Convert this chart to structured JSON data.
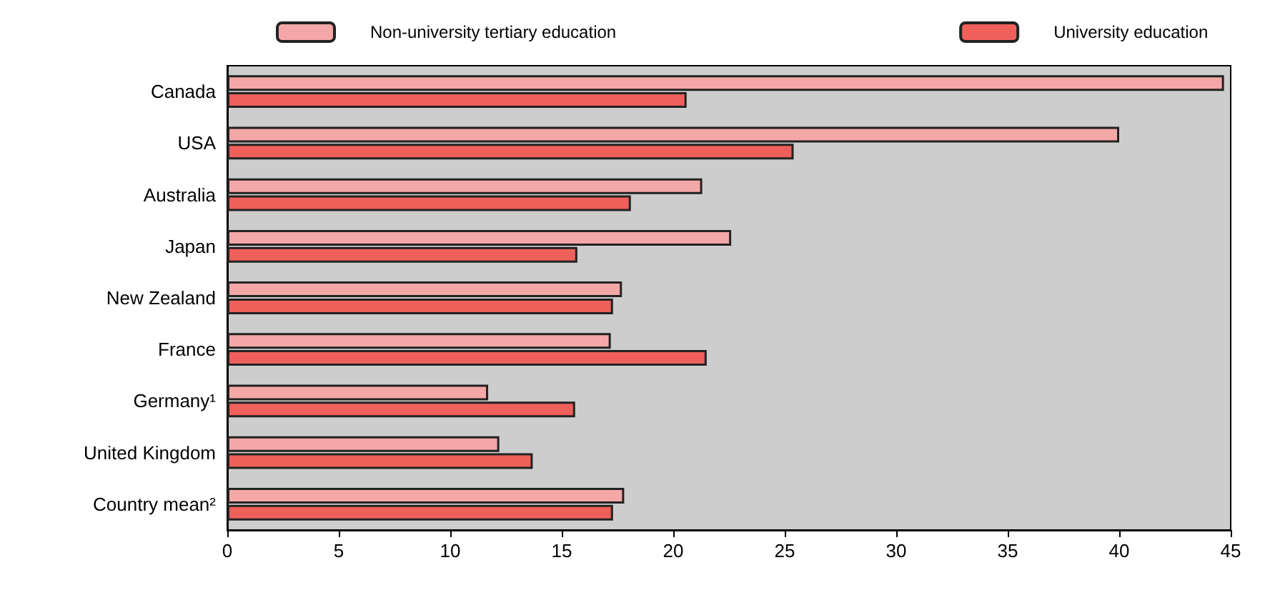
{
  "chart_data": {
    "type": "bar",
    "orientation": "horizontal",
    "categories": [
      "Canada",
      "USA",
      "Australia",
      "Japan",
      "New Zealand",
      "France",
      "Germany¹",
      "United Kingdom",
      "Country mean²"
    ],
    "series": [
      {
        "name": "Non-university tertiary education",
        "color": "#f4a7a7",
        "values": [
          44.7,
          40.0,
          21.3,
          22.6,
          17.7,
          17.2,
          11.7,
          12.2,
          17.8
        ]
      },
      {
        "name": "University education",
        "color": "#f0605a",
        "values": [
          20.6,
          25.4,
          18.1,
          15.7,
          17.3,
          21.5,
          15.6,
          13.7,
          17.3
        ]
      }
    ],
    "xlim": [
      0,
      45
    ],
    "xticks": [
      0,
      5,
      10,
      15,
      20,
      25,
      30,
      35,
      40,
      45
    ],
    "grid": false,
    "legend": "top"
  }
}
